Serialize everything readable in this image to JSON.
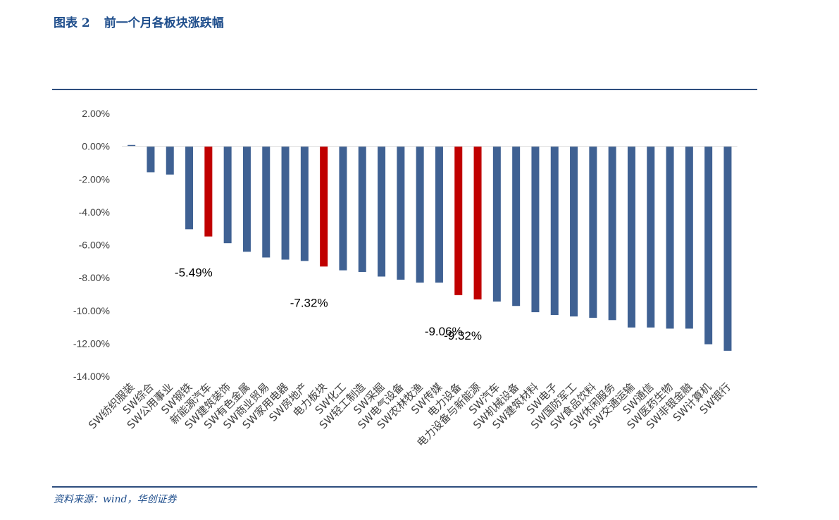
{
  "header": {
    "figure_no": "图表 2",
    "title": "前一个月各板块涨跌幅"
  },
  "footer": {
    "source": "资料来源：wind，华创证券"
  },
  "colors": {
    "default_bar": "#3f6193",
    "highlight_bar": "#c00000",
    "rule": "#2e4e7e",
    "title": "#1f4e8c"
  },
  "chart_data": {
    "type": "bar",
    "title": "",
    "xlabel": "",
    "ylabel": "",
    "ylim": [
      -14,
      2
    ],
    "y_ticks": [
      "2.00%",
      "0.00%",
      "-2.00%",
      "-4.00%",
      "-6.00%",
      "-8.00%",
      "-10.00%",
      "-12.00%",
      "-14.00%"
    ],
    "y_tick_values": [
      2,
      0,
      -2,
      -4,
      -6,
      -8,
      -10,
      -12,
      -14
    ],
    "categories": [
      "SW纺织服装",
      "SW综合",
      "SW公用事业",
      "SW钢铁",
      "新能源汽车",
      "SW建筑装饰",
      "SW有色金属",
      "SW商业贸易",
      "SW家用电器",
      "SW房地产",
      "电力板块",
      "SW化工",
      "SW轻工制造",
      "SW采掘",
      "SW电气设备",
      "SW农林牧渔",
      "SW传媒",
      "电力设备",
      "电力设备与新能源",
      "SW汽车",
      "SW机械设备",
      "SW建筑材料",
      "SW电子",
      "SW国防军工",
      "SW食品饮料",
      "SW休闲服务",
      "SW交通运输",
      "SW通信",
      "SW医药生物",
      "SW非银金融",
      "SW计算机",
      "SW银行"
    ],
    "values": [
      0.08,
      -1.58,
      -1.72,
      -5.05,
      -5.49,
      -5.9,
      -6.42,
      -6.77,
      -6.9,
      -6.98,
      -7.32,
      -7.55,
      -7.65,
      -7.93,
      -8.12,
      -8.3,
      -8.3,
      -9.06,
      -9.32,
      -9.45,
      -9.72,
      -10.1,
      -10.27,
      -10.36,
      -10.44,
      -10.58,
      -11.03,
      -11.03,
      -11.1,
      -11.1,
      -12.05,
      -12.45
    ],
    "highlighted": [
      "新能源汽车",
      "电力板块",
      "电力设备",
      "电力设备与新能源"
    ],
    "data_labels": [
      {
        "category": "新能源汽车",
        "text": "-5.49%"
      },
      {
        "category": "电力板块",
        "text": "-7.32%"
      },
      {
        "category": "电力设备",
        "text": "-9.06%"
      },
      {
        "category": "电力设备与新能源",
        "text": "-9.32%"
      }
    ],
    "grid": false,
    "legend": "none"
  }
}
